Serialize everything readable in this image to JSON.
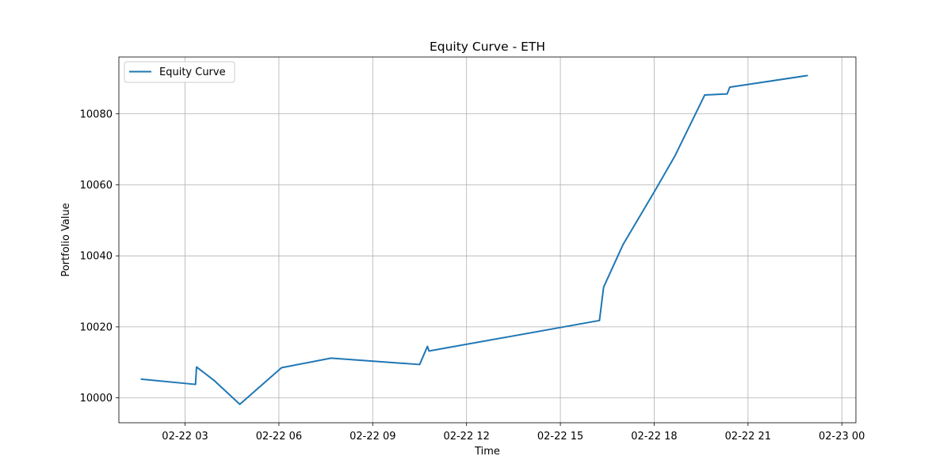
{
  "chart_data": {
    "type": "line",
    "title": "Equity Curve - ETH",
    "xlabel": "Time",
    "ylabel": "Portfolio Value",
    "x_ticks": [
      "02-22 03",
      "02-22 06",
      "02-22 09",
      "02-22 12",
      "02-22 15",
      "02-22 18",
      "02-22 21",
      "02-23 00"
    ],
    "y_ticks": [
      10000,
      10020,
      10040,
      10060,
      10080
    ],
    "xlim": [
      "2024-02-22T00:53",
      "2024-02-23T00:27"
    ],
    "ylim": [
      9993,
      10096
    ],
    "grid": true,
    "legend_position": "top-left",
    "series": [
      {
        "name": "Equity Curve",
        "color": "#1f77b4",
        "points": [
          {
            "t": "2024-02-22T01:35",
            "y": 10005.3
          },
          {
            "t": "2024-02-22T03:20",
            "y": 10003.8
          },
          {
            "t": "2024-02-22T03:22",
            "y": 10008.7
          },
          {
            "t": "2024-02-22T03:55",
            "y": 10005.0
          },
          {
            "t": "2024-02-22T04:45",
            "y": 9998.2
          },
          {
            "t": "2024-02-22T06:05",
            "y": 10008.5
          },
          {
            "t": "2024-02-22T07:40",
            "y": 10011.2
          },
          {
            "t": "2024-02-22T10:30",
            "y": 10009.4
          },
          {
            "t": "2024-02-22T10:45",
            "y": 10014.5
          },
          {
            "t": "2024-02-22T10:48",
            "y": 10013.2
          },
          {
            "t": "2024-02-22T16:15",
            "y": 10021.8
          },
          {
            "t": "2024-02-22T16:23",
            "y": 10031.2
          },
          {
            "t": "2024-02-22T17:00",
            "y": 10043.1
          },
          {
            "t": "2024-02-22T18:00",
            "y": 10058.0
          },
          {
            "t": "2024-02-22T18:40",
            "y": 10068.2
          },
          {
            "t": "2024-02-22T19:10",
            "y": 10077.2
          },
          {
            "t": "2024-02-22T19:37",
            "y": 10085.3
          },
          {
            "t": "2024-02-22T20:20",
            "y": 10085.6
          },
          {
            "t": "2024-02-22T20:25",
            "y": 10087.5
          },
          {
            "t": "2024-02-22T22:55",
            "y": 10090.8
          }
        ]
      }
    ]
  }
}
